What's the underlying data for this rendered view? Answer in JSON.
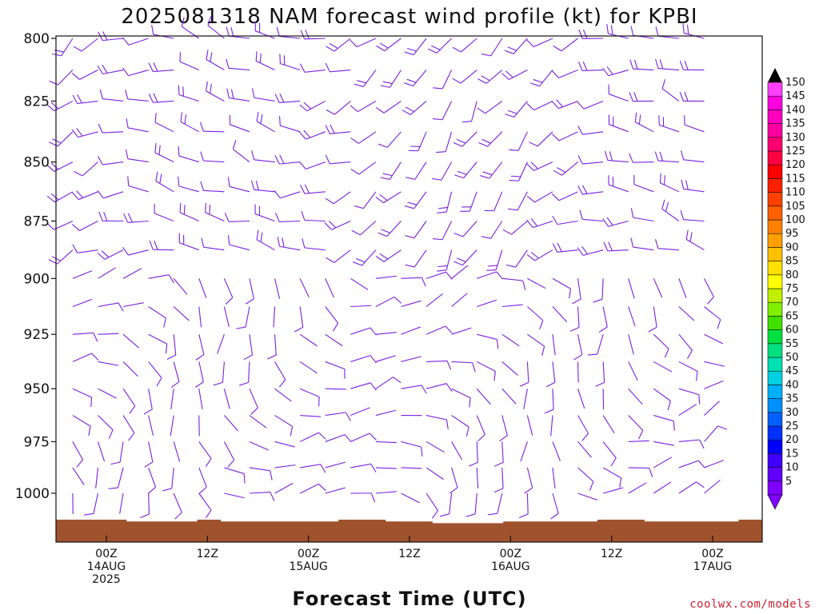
{
  "chart_data": {
    "type": "wind-barb-profile",
    "title": "2025081318 NAM forecast wind profile (kt) for KPBI",
    "xlabel": "Forecast Time (UTC)",
    "ylabel": "",
    "y_scale": "pressure (log), inverted",
    "ylim": [
      800,
      1016
    ],
    "y_ticks": [
      {
        "label": "800",
        "value": 800
      },
      {
        "label": "825",
        "value": 825
      },
      {
        "label": "850",
        "value": 850
      },
      {
        "label": "875",
        "value": 875
      },
      {
        "label": "900",
        "value": 900
      },
      {
        "label": "925",
        "value": 925
      },
      {
        "label": "950",
        "value": 950
      },
      {
        "label": "975",
        "value": 975
      },
      {
        "label": "1000",
        "value": 1000
      }
    ],
    "x_range_hours": [
      -9,
      75
    ],
    "x_ticks": [
      {
        "hour": 0,
        "line1": "00Z",
        "line2": "14AUG",
        "line3": "2025"
      },
      {
        "hour": 12,
        "line1": "12Z",
        "line2": "",
        "line3": ""
      },
      {
        "hour": 24,
        "line1": "00Z",
        "line2": "15AUG",
        "line3": ""
      },
      {
        "hour": 36,
        "line1": "12Z",
        "line2": "",
        "line3": ""
      },
      {
        "hour": 48,
        "line1": "00Z",
        "line2": "16AUG",
        "line3": ""
      },
      {
        "hour": 60,
        "line1": "12Z",
        "line2": "",
        "line3": ""
      },
      {
        "hour": 72,
        "line1": "00Z",
        "line2": "17AUG",
        "line3": ""
      }
    ],
    "surface_pressure": [
      1012,
      1012,
      1012,
      1013,
      1013,
      1013,
      1012,
      1013,
      1013,
      1013,
      1013,
      1013,
      1012,
      1012,
      1013,
      1013,
      1014,
      1014,
      1014,
      1013,
      1013,
      1013,
      1013,
      1012,
      1012,
      1013,
      1013,
      1013,
      1013,
      1012,
      1012
    ],
    "barb_color": "#7a20e0",
    "ground_color": "#a0522d",
    "colorbar": {
      "levels": [
        "5",
        "10",
        "15",
        "20",
        "25",
        "30",
        "35",
        "40",
        "45",
        "50",
        "55",
        "60",
        "65",
        "70",
        "75",
        "80",
        "85",
        "90",
        "95",
        "100",
        "105",
        "110",
        "115",
        "120",
        "125",
        "130",
        "135",
        "140",
        "145",
        "150"
      ],
      "colors": [
        "#8000ff",
        "#6000ff",
        "#4000ff",
        "#0000ff",
        "#0030ff",
        "#0060ff",
        "#0090ff",
        "#00b0ff",
        "#00d0e0",
        "#00e0b0",
        "#00e080",
        "#00e040",
        "#40e000",
        "#80f000",
        "#c0f000",
        "#ffff00",
        "#ffe000",
        "#ffc000",
        "#ffa000",
        "#ff8000",
        "#ff6000",
        "#ff4000",
        "#ff2000",
        "#ff0000",
        "#ff0040",
        "#ff0070",
        "#ff00a0",
        "#ff00c0",
        "#ff00e0",
        "#ff40ff"
      ],
      "top_arrow_color": "#000000",
      "bottom_arrow_color": "#8000ff"
    }
  },
  "credit": {
    "text": "coolwx.com/models",
    "color": "#cc2233"
  }
}
